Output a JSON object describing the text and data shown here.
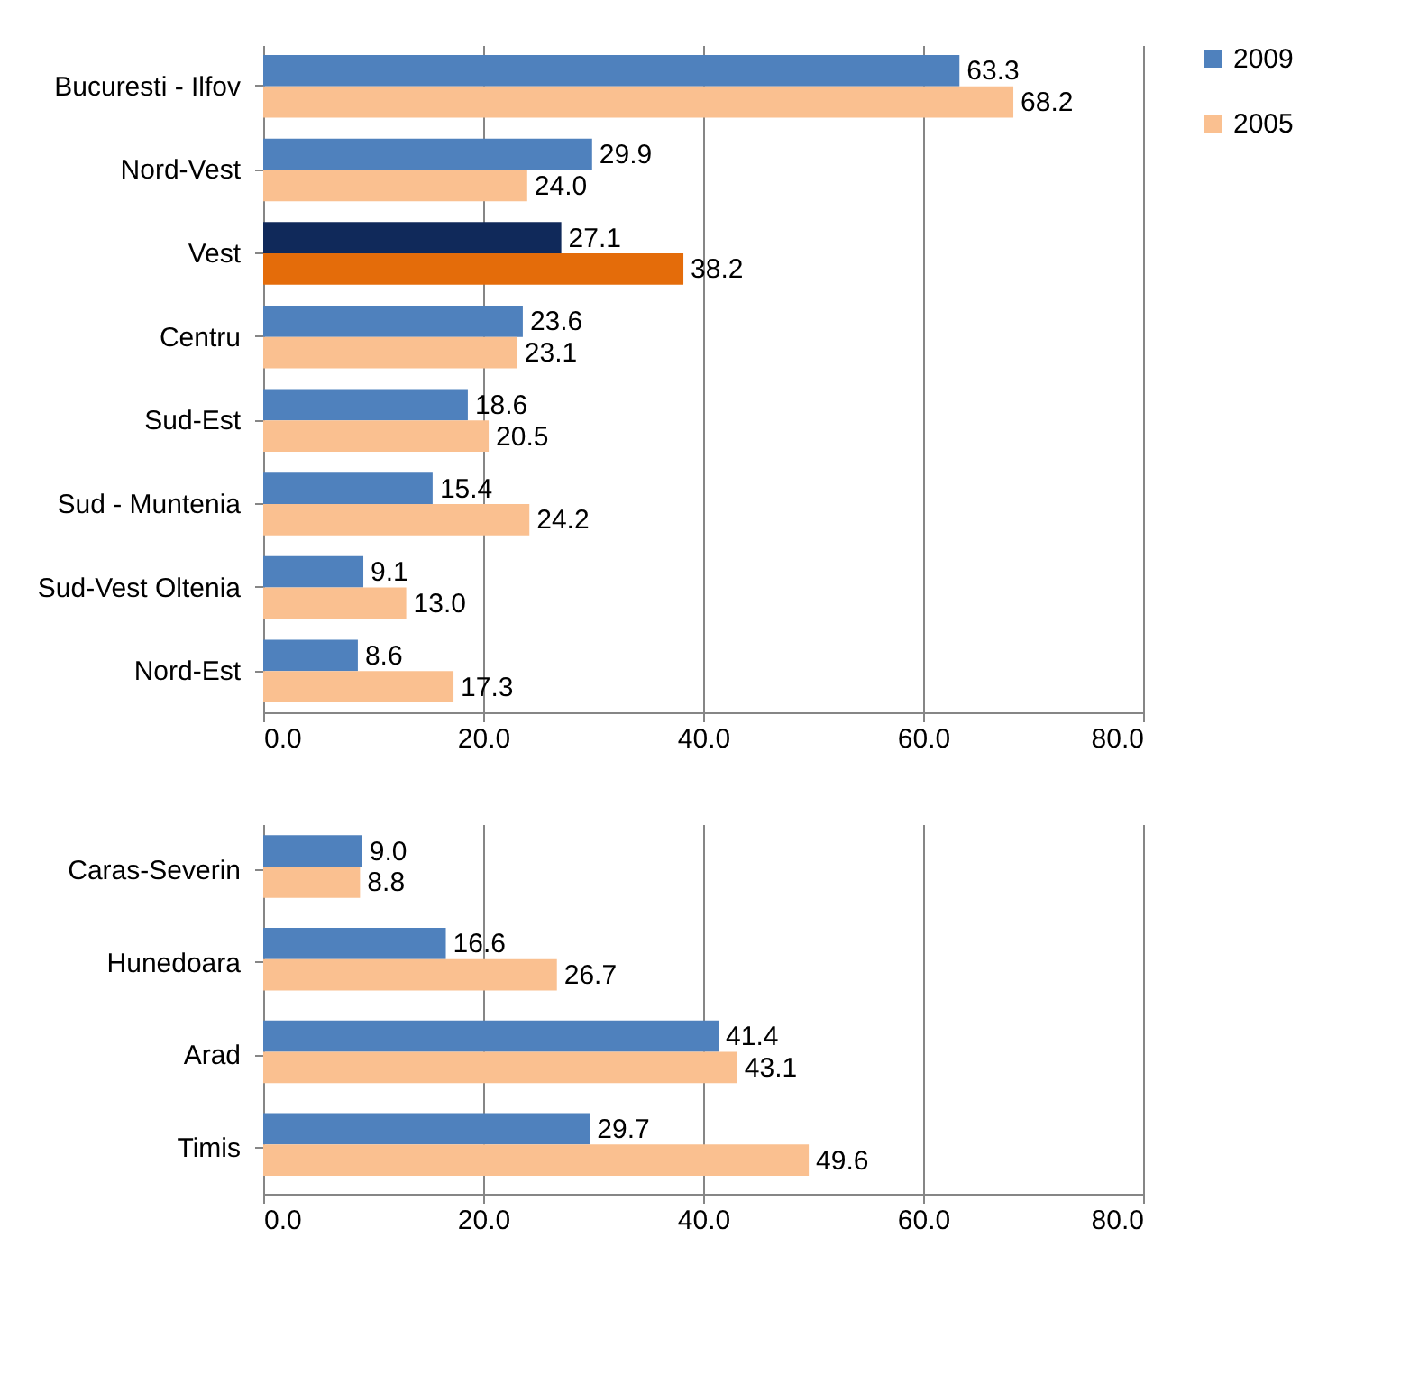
{
  "chart_data": [
    {
      "type": "bar",
      "orientation": "horizontal",
      "categories": [
        "Bucuresti - Ilfov",
        "Nord-Vest",
        "Vest",
        "Centru",
        "Sud-Est",
        "Sud - Muntenia",
        "Sud-Vest Oltenia",
        "Nord-Est"
      ],
      "series": [
        {
          "name": "2009",
          "color": "#4f81bd",
          "colors": [
            "#4f81bd",
            "#4f81bd",
            "#10295a",
            "#4f81bd",
            "#4f81bd",
            "#4f81bd",
            "#4f81bd",
            "#4f81bd"
          ],
          "values": [
            63.3,
            29.9,
            27.1,
            23.6,
            18.6,
            15.4,
            9.1,
            8.6
          ],
          "value_labels": [
            "63.3",
            "29.9",
            "27.1",
            "23.6",
            "18.6",
            "15.4",
            "9.1",
            "8.6"
          ]
        },
        {
          "name": "2005",
          "color": "#fac090",
          "colors": [
            "#fac090",
            "#fac090",
            "#e46c0a",
            "#fac090",
            "#fac090",
            "#fac090",
            "#fac090",
            "#fac090"
          ],
          "values": [
            68.2,
            24.0,
            38.2,
            23.1,
            20.5,
            24.2,
            13.0,
            17.3
          ],
          "value_labels": [
            "68.2",
            "24.0",
            "38.2",
            "23.1",
            "20.5",
            "24.2",
            "13.0",
            "17.3"
          ]
        }
      ],
      "xlim": [
        0,
        80
      ],
      "xticks": [
        {
          "value": 0,
          "label": "0.0"
        },
        {
          "value": 20,
          "label": "20.0"
        },
        {
          "value": 40,
          "label": "40.0"
        },
        {
          "value": 60,
          "label": "60.0"
        },
        {
          "value": 80,
          "label": "80.0"
        }
      ],
      "grid": "x",
      "legend": "right"
    },
    {
      "type": "bar",
      "orientation": "horizontal",
      "categories": [
        "Caras-Severin",
        "Hunedoara",
        "Arad",
        "Timis"
      ],
      "series": [
        {
          "name": "2009",
          "color": "#4f81bd",
          "values": [
            9.0,
            16.6,
            41.4,
            29.7
          ],
          "value_labels": [
            "9.0",
            "16.6",
            "41.4",
            "29.7"
          ]
        },
        {
          "name": "2005",
          "color": "#fac090",
          "values": [
            8.8,
            26.7,
            43.1,
            49.6
          ],
          "value_labels": [
            "8.8",
            "26.7",
            "43.1",
            "49.6"
          ]
        }
      ],
      "xlim": [
        0,
        80
      ],
      "xticks": [
        {
          "value": 0,
          "label": "0.0"
        },
        {
          "value": 20,
          "label": "20.0"
        },
        {
          "value": 40,
          "label": "40.0"
        },
        {
          "value": 60,
          "label": "60.0"
        },
        {
          "value": 80,
          "label": "80.0"
        }
      ],
      "grid": "x",
      "legend": "right"
    }
  ]
}
